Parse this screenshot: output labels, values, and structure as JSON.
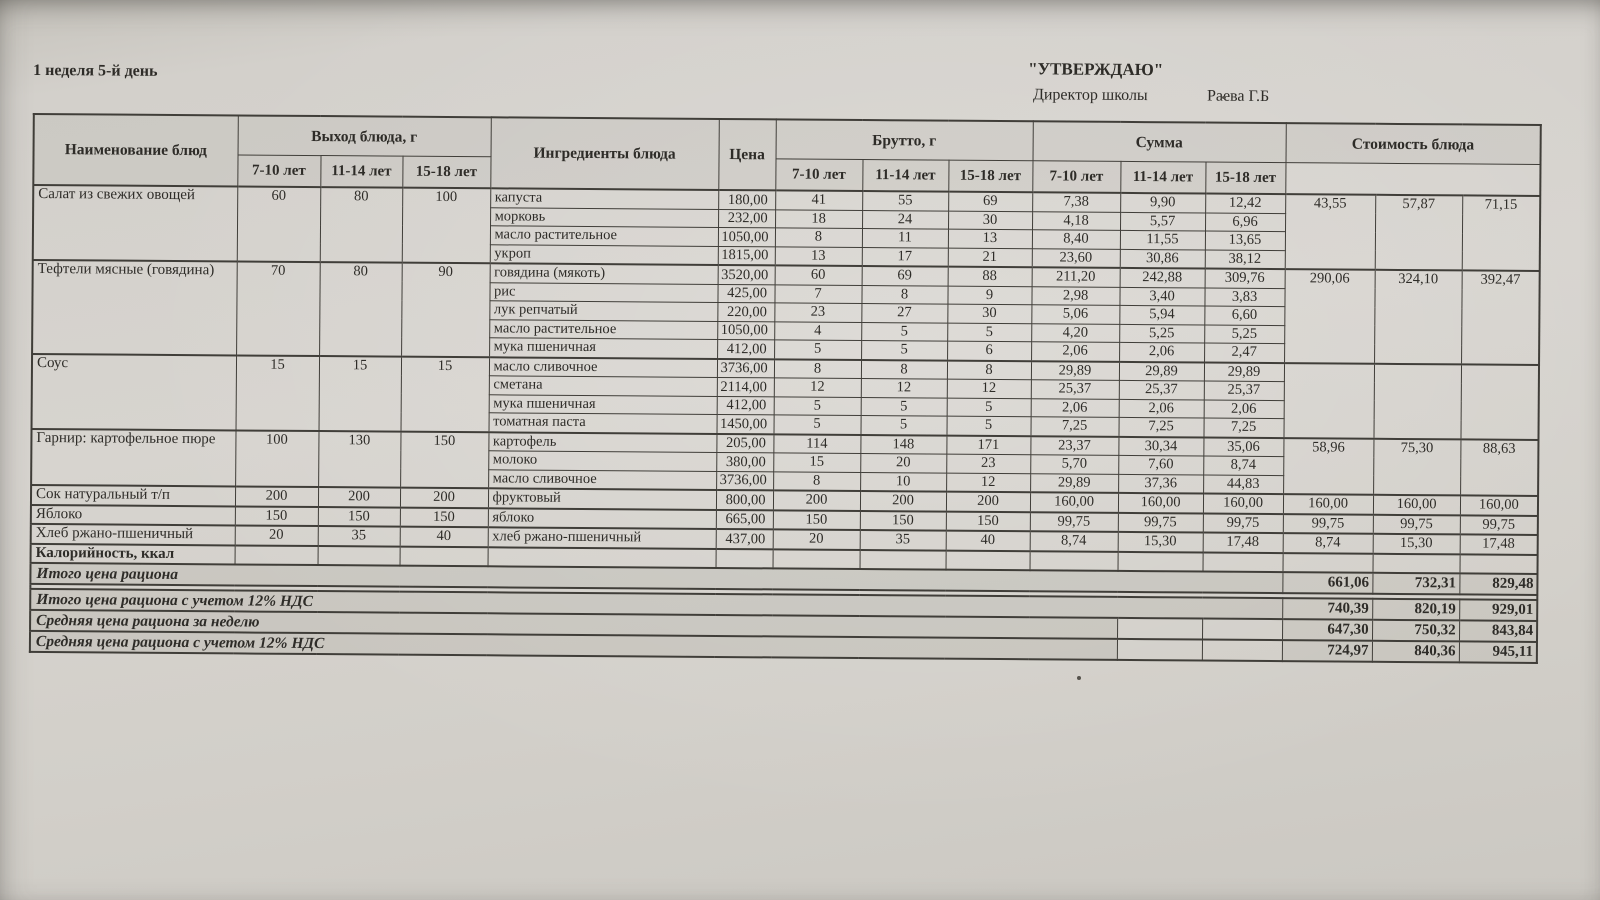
{
  "page": {
    "day_label": "1 неделя 5-й день",
    "approval": "\"УТВЕРЖДАЮ\"",
    "director_title": "Директор школы",
    "director_name": "Раева Г.Б"
  },
  "colors": {
    "paper": "#d2cfca",
    "ink": "#2e2c28",
    "border": "#403e39"
  },
  "table": {
    "headers": {
      "name": "Наименование блюд",
      "output": "Выход блюда, г",
      "ingredients": "Ингредиенты блюда",
      "price": "Цена",
      "brutto": "Брутто, г",
      "sum": "Сумма",
      "dish_cost": "Стоимость блюда",
      "age_groups": [
        "7-10 лет",
        "11-14 лет",
        "15-18 лет"
      ]
    },
    "dishes": [
      {
        "name": "Салат из свежих овощей",
        "output": [
          "60",
          "80",
          "100"
        ],
        "cost": [
          "43,55",
          "57,87",
          "71,15"
        ],
        "ingredients": [
          {
            "name": "капуста",
            "price": "180,00",
            "brutto": [
              "41",
              "55",
              "69"
            ],
            "sum": [
              "7,38",
              "9,90",
              "12,42"
            ]
          },
          {
            "name": "морковь",
            "price": "232,00",
            "brutto": [
              "18",
              "24",
              "30"
            ],
            "sum": [
              "4,18",
              "5,57",
              "6,96"
            ]
          },
          {
            "name": "масло растительное",
            "price": "1050,00",
            "brutto": [
              "8",
              "11",
              "13"
            ],
            "sum": [
              "8,40",
              "11,55",
              "13,65"
            ]
          },
          {
            "name": "укроп",
            "price": "1815,00",
            "brutto": [
              "13",
              "17",
              "21"
            ],
            "sum": [
              "23,60",
              "30,86",
              "38,12"
            ]
          }
        ]
      },
      {
        "name": "Тефтели мясные (говядина)",
        "output": [
          "70",
          "80",
          "90"
        ],
        "cost": [
          "290,06",
          "324,10",
          "392,47"
        ],
        "ingredients": [
          {
            "name": "говядина (мякоть)",
            "price": "3520,00",
            "brutto": [
              "60",
              "69",
              "88"
            ],
            "sum": [
              "211,20",
              "242,88",
              "309,76"
            ]
          },
          {
            "name": "рис",
            "price": "425,00",
            "brutto": [
              "7",
              "8",
              "9"
            ],
            "sum": [
              "2,98",
              "3,40",
              "3,83"
            ]
          },
          {
            "name": "лук репчатый",
            "price": "220,00",
            "brutto": [
              "23",
              "27",
              "30"
            ],
            "sum": [
              "5,06",
              "5,94",
              "6,60"
            ]
          },
          {
            "name": "масло растительное",
            "price": "1050,00",
            "brutto": [
              "4",
              "5",
              "5"
            ],
            "sum": [
              "4,20",
              "5,25",
              "5,25"
            ]
          },
          {
            "name": "мука пшеничная",
            "price": "412,00",
            "brutto": [
              "5",
              "5",
              "6"
            ],
            "sum": [
              "2,06",
              "2,06",
              "2,47"
            ]
          }
        ]
      },
      {
        "name": "Соус",
        "output": [
          "15",
          "15",
          "15"
        ],
        "cost": [
          "",
          "",
          ""
        ],
        "ingredients": [
          {
            "name": "масло сливочное",
            "price": "3736,00",
            "brutto": [
              "8",
              "8",
              "8"
            ],
            "sum": [
              "29,89",
              "29,89",
              "29,89"
            ]
          },
          {
            "name": "сметана",
            "price": "2114,00",
            "brutto": [
              "12",
              "12",
              "12"
            ],
            "sum": [
              "25,37",
              "25,37",
              "25,37"
            ]
          },
          {
            "name": "мука пшеничная",
            "price": "412,00",
            "brutto": [
              "5",
              "5",
              "5"
            ],
            "sum": [
              "2,06",
              "2,06",
              "2,06"
            ]
          },
          {
            "name": "томатная паста",
            "price": "1450,00",
            "brutto": [
              "5",
              "5",
              "5"
            ],
            "sum": [
              "7,25",
              "7,25",
              "7,25"
            ]
          }
        ]
      },
      {
        "name": "Гарнир: картофельное пюре",
        "output": [
          "100",
          "130",
          "150"
        ],
        "cost": [
          "58,96",
          "75,30",
          "88,63"
        ],
        "ingredients": [
          {
            "name": "картофель",
            "price": "205,00",
            "brutto": [
              "114",
              "148",
              "171"
            ],
            "sum": [
              "23,37",
              "30,34",
              "35,06"
            ]
          },
          {
            "name": "молоко",
            "price": "380,00",
            "brutto": [
              "15",
              "20",
              "23"
            ],
            "sum": [
              "5,70",
              "7,60",
              "8,74"
            ]
          },
          {
            "name": "масло сливочное",
            "price": "3736,00",
            "brutto": [
              "8",
              "10",
              "12"
            ],
            "sum": [
              "29,89",
              "37,36",
              "44,83"
            ]
          }
        ]
      },
      {
        "name": "Сок натуральный т/п",
        "output": [
          "200",
          "200",
          "200"
        ],
        "cost": [
          "160,00",
          "160,00",
          "160,00"
        ],
        "ingredients": [
          {
            "name": "фруктовый",
            "price": "800,00",
            "brutto": [
              "200",
              "200",
              "200"
            ],
            "sum": [
              "160,00",
              "160,00",
              "160,00"
            ]
          }
        ]
      },
      {
        "name": "Яблоко",
        "output": [
          "150",
          "150",
          "150"
        ],
        "cost": [
          "99,75",
          "99,75",
          "99,75"
        ],
        "ingredients": [
          {
            "name": "яблоко",
            "price": "665,00",
            "brutto": [
              "150",
              "150",
              "150"
            ],
            "sum": [
              "99,75",
              "99,75",
              "99,75"
            ]
          }
        ]
      },
      {
        "name": "Хлеб ржано-пшеничный",
        "output": [
          "20",
          "35",
          "40"
        ],
        "cost": [
          "8,74",
          "15,30",
          "17,48"
        ],
        "ingredients": [
          {
            "name": "хлеб ржано-пшеничный",
            "price": "437,00",
            "brutto": [
              "20",
              "35",
              "40"
            ],
            "sum": [
              "8,74",
              "15,30",
              "17,48"
            ]
          }
        ]
      }
    ],
    "calories_label": "Калорийность, ккал",
    "totals": [
      {
        "label": "Итого цена рациона",
        "values": [
          "661,06",
          "732,31",
          "829,48"
        ],
        "empty_cells": 0,
        "gap_before": false
      },
      {
        "label": "Итого цена рациона с учетом 12% НДС",
        "values": [
          "740,39",
          "820,19",
          "929,01"
        ],
        "empty_cells": 0,
        "gap_before": true
      },
      {
        "label": "Средняя цена рациона за неделю",
        "values": [
          "647,30",
          "750,32",
          "843,84"
        ],
        "empty_cells": 2,
        "gap_before": false
      },
      {
        "label": "Средняя цена рациона с учетом 12% НДС",
        "values": [
          "724,97",
          "840,36",
          "945,11"
        ],
        "empty_cells": 2,
        "gap_before": false
      }
    ]
  }
}
